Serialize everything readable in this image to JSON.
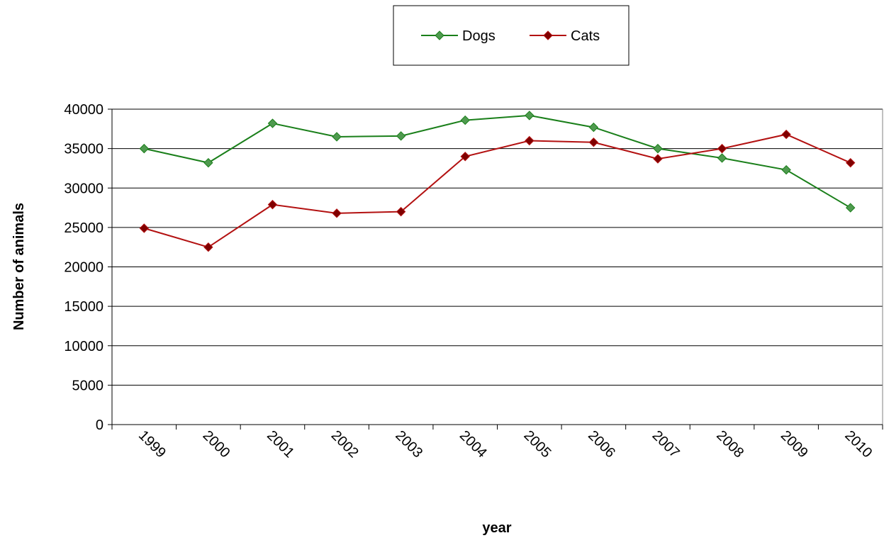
{
  "chart_data": {
    "type": "line",
    "categories": [
      "1999",
      "2000",
      "2001",
      "2002",
      "2003",
      "2004",
      "2005",
      "2006",
      "2007",
      "2008",
      "2009",
      "2010"
    ],
    "series": [
      {
        "name": "Dogs",
        "color": "#1a7f1a",
        "marker_color": "#4f9a4f",
        "values": [
          35000,
          33200,
          38200,
          36500,
          36600,
          38600,
          39200,
          37700,
          35000,
          33800,
          32300,
          27500
        ]
      },
      {
        "name": "Cats",
        "color": "#b31111",
        "marker_color": "#7f0000",
        "values": [
          24900,
          22500,
          27900,
          26800,
          27000,
          34000,
          36000,
          35800,
          33700,
          35000,
          36800,
          33200
        ]
      }
    ],
    "title": "",
    "xlabel": "year",
    "ylabel": "Number of animals",
    "ylim": [
      0,
      40000
    ],
    "yticks": [
      0,
      5000,
      10000,
      15000,
      20000,
      25000,
      30000,
      35000,
      40000
    ],
    "grid": true,
    "legend_position": "top"
  }
}
